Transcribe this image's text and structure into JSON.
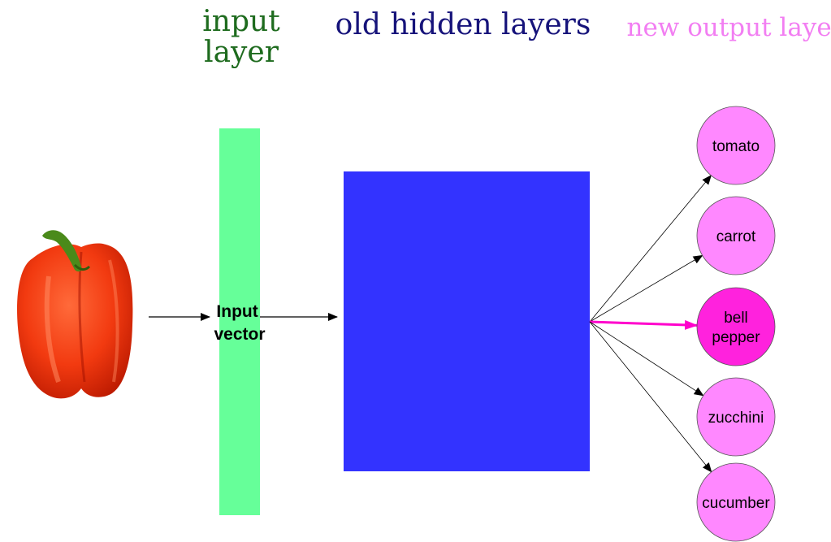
{
  "headers": {
    "input_layer": [
      "input",
      "layer"
    ],
    "hidden_layers": "old hidden layers",
    "output_layer": "new output layer"
  },
  "input_vector_label": [
    "Input",
    "vector"
  ],
  "output_nodes": [
    {
      "label": [
        "tomato"
      ],
      "highlighted": false
    },
    {
      "label": [
        "carrot"
      ],
      "highlighted": false
    },
    {
      "label": [
        "bell",
        "pepper"
      ],
      "highlighted": true
    },
    {
      "label": [
        "zucchini"
      ],
      "highlighted": false
    },
    {
      "label": [
        "cucumber"
      ],
      "highlighted": false
    }
  ],
  "colors": {
    "input_header": "#1e6b1e",
    "hidden_header": "#16137a",
    "output_header": "#f27ef2",
    "input_layer_fill": "#66ff99",
    "hidden_layer_fill": "#3333ff",
    "node_fill": "#ff88ff",
    "node_highlight_fill": "#ff22dd",
    "highlight_arrow": "#ff00cc",
    "arrow": "#000000"
  },
  "image_subject": "red bell pepper"
}
